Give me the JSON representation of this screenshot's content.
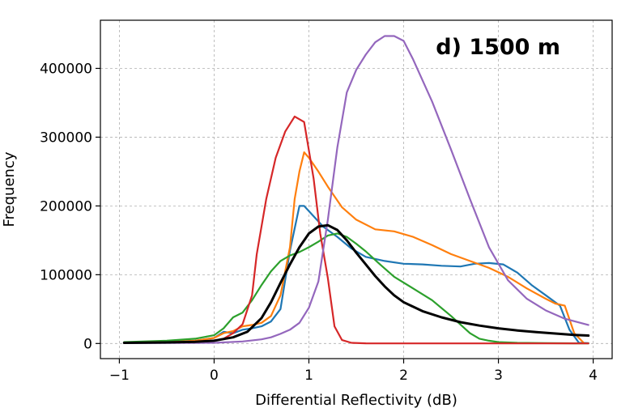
{
  "chart_data": {
    "type": "line",
    "title": "d) 1500 m",
    "xlabel": "Differential Reflectivity (dB)",
    "ylabel": "Frequency",
    "xlim": [
      -1.2,
      4.2
    ],
    "ylim": [
      -22000,
      470000
    ],
    "xticks": [
      -1,
      0,
      1,
      2,
      3,
      4
    ],
    "xtick_labels": [
      "−1",
      "0",
      "1",
      "2",
      "3",
      "4"
    ],
    "yticks": [
      0,
      100000,
      200000,
      300000,
      400000
    ],
    "ytick_labels": [
      "0",
      "100000",
      "200000",
      "300000",
      "400000"
    ],
    "grid": true,
    "series": [
      {
        "name": "blue",
        "color": "#1f77b4",
        "x": [
          -0.95,
          -0.5,
          -0.2,
          0.0,
          0.1,
          0.2,
          0.3,
          0.4,
          0.5,
          0.6,
          0.7,
          0.8,
          0.9,
          0.95,
          1.05,
          1.15,
          1.3,
          1.45,
          1.6,
          1.8,
          2.0,
          2.2,
          2.4,
          2.6,
          2.75,
          2.9,
          3.05,
          3.2,
          3.35,
          3.5,
          3.65,
          3.75,
          3.85,
          3.95
        ],
        "y": [
          1000,
          2000,
          4000,
          8000,
          17000,
          15000,
          20000,
          22000,
          25000,
          32000,
          50000,
          135000,
          200000,
          200000,
          185000,
          170000,
          155000,
          138000,
          126000,
          120000,
          116000,
          115000,
          113000,
          112000,
          116000,
          117000,
          115000,
          103000,
          85000,
          70000,
          55000,
          20000,
          1000,
          500
        ]
      },
      {
        "name": "orange",
        "color": "#ff7f0e",
        "x": [
          -0.95,
          -0.5,
          -0.2,
          0.0,
          0.1,
          0.2,
          0.3,
          0.4,
          0.5,
          0.6,
          0.7,
          0.8,
          0.85,
          0.9,
          0.95,
          1.0,
          1.1,
          1.2,
          1.35,
          1.5,
          1.7,
          1.9,
          2.1,
          2.3,
          2.5,
          2.7,
          2.9,
          3.1,
          3.3,
          3.5,
          3.6,
          3.7,
          3.8,
          3.9
        ],
        "y": [
          1000,
          2000,
          4000,
          8000,
          15000,
          18000,
          25000,
          27000,
          30000,
          40000,
          70000,
          140000,
          210000,
          250000,
          278000,
          270000,
          250000,
          228000,
          198000,
          180000,
          166000,
          163000,
          155000,
          143000,
          130000,
          120000,
          110000,
          97000,
          80000,
          65000,
          58000,
          55000,
          15000,
          1000
        ]
      },
      {
        "name": "green",
        "color": "#2ca02c",
        "x": [
          -0.95,
          -0.5,
          -0.2,
          0.0,
          0.1,
          0.2,
          0.3,
          0.4,
          0.5,
          0.6,
          0.7,
          0.8,
          0.9,
          1.0,
          1.1,
          1.2,
          1.3,
          1.4,
          1.5,
          1.6,
          1.75,
          1.9,
          2.1,
          2.3,
          2.5,
          2.7,
          2.8,
          2.9,
          3.0,
          3.2,
          3.5,
          3.8,
          3.95
        ],
        "y": [
          2000,
          4000,
          7000,
          12000,
          22000,
          38000,
          45000,
          63000,
          85000,
          105000,
          120000,
          128000,
          133000,
          140000,
          148000,
          157000,
          160000,
          155000,
          145000,
          134000,
          115000,
          97000,
          80000,
          63000,
          40000,
          15000,
          7000,
          4000,
          2000,
          1000,
          500,
          300,
          300
        ]
      },
      {
        "name": "red",
        "color": "#d62728",
        "x": [
          -0.95,
          -0.5,
          -0.2,
          0.0,
          0.1,
          0.2,
          0.3,
          0.4,
          0.45,
          0.55,
          0.65,
          0.75,
          0.85,
          0.95,
          1.05,
          1.12,
          1.2,
          1.27,
          1.35,
          1.45,
          1.6,
          2.0,
          2.5,
          3.0,
          3.5,
          3.95
        ],
        "y": [
          1000,
          2000,
          2500,
          4000,
          7000,
          15000,
          28000,
          70000,
          130000,
          210000,
          270000,
          308000,
          330000,
          322000,
          240000,
          160000,
          95000,
          25000,
          5000,
          1000,
          200,
          100,
          100,
          100,
          100,
          100
        ]
      },
      {
        "name": "purple",
        "color": "#9467bd",
        "x": [
          -0.95,
          -0.5,
          0.0,
          0.3,
          0.5,
          0.6,
          0.7,
          0.8,
          0.9,
          1.0,
          1.1,
          1.2,
          1.3,
          1.4,
          1.5,
          1.6,
          1.7,
          1.8,
          1.9,
          2.0,
          2.1,
          2.3,
          2.5,
          2.7,
          2.9,
          3.1,
          3.3,
          3.5,
          3.7,
          3.95
        ],
        "y": [
          500,
          700,
          1000,
          3000,
          6000,
          9000,
          14000,
          20000,
          30000,
          52000,
          90000,
          180000,
          285000,
          365000,
          398000,
          420000,
          438000,
          447000,
          447000,
          440000,
          413000,
          352000,
          282000,
          210000,
          140000,
          92000,
          65000,
          48000,
          36000,
          27000
        ]
      },
      {
        "name": "black",
        "color": "#000000",
        "x": [
          -0.95,
          -0.5,
          -0.2,
          0.0,
          0.2,
          0.35,
          0.5,
          0.6,
          0.7,
          0.8,
          0.9,
          1.0,
          1.1,
          1.2,
          1.3,
          1.4,
          1.5,
          1.6,
          1.7,
          1.8,
          1.9,
          2.0,
          2.2,
          2.4,
          2.6,
          2.8,
          3.0,
          3.2,
          3.4,
          3.6,
          3.8,
          3.95
        ],
        "y": [
          1000,
          1500,
          2500,
          4000,
          9000,
          17000,
          37000,
          60000,
          88000,
          115000,
          140000,
          160000,
          170000,
          172000,
          165000,
          150000,
          132000,
          115000,
          98000,
          83000,
          70000,
          60000,
          47000,
          38000,
          31000,
          26000,
          22000,
          19000,
          16500,
          14500,
          12500,
          11500
        ]
      }
    ]
  }
}
